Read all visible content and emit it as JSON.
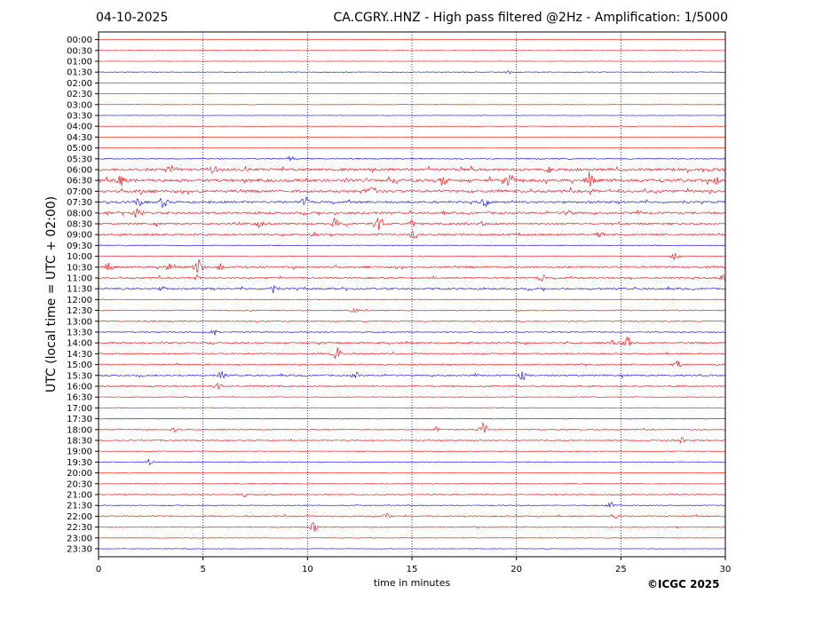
{
  "header": {
    "date": "04-10-2025",
    "title": "CA.CGRY..HNZ - High pass filtered @2Hz - Amplification: 1/5000"
  },
  "credit": "©ICGC 2025",
  "colors": {
    "red": "#ff0000",
    "blue": "#0000ff",
    "axis": "#000000",
    "grid": "#000080"
  },
  "chart_data": {
    "type": "line",
    "title": "CA.CGRY..HNZ - High pass filtered @2Hz - Amplification: 1/5000",
    "xlabel": "time in minutes",
    "ylabel": "UTC (local time = UTC + 02:00)",
    "xlim": [
      0,
      30
    ],
    "xticks": [
      0,
      5,
      10,
      15,
      20,
      25,
      30
    ],
    "x_gridlines": [
      5,
      10,
      15,
      20,
      25
    ],
    "row_colors": [
      "red",
      "red",
      "red",
      "blue"
    ],
    "rows": [
      "00:00",
      "00:30",
      "01:00",
      "01:30",
      "02:00",
      "02:30",
      "03:00",
      "03:30",
      "04:00",
      "04:30",
      "05:00",
      "05:30",
      "06:00",
      "06:30",
      "07:00",
      "07:30",
      "08:00",
      "08:30",
      "09:00",
      "09:30",
      "10:00",
      "10:30",
      "11:00",
      "11:30",
      "12:00",
      "12:30",
      "13:00",
      "13:30",
      "14:00",
      "14:30",
      "15:00",
      "15:30",
      "16:00",
      "16:30",
      "17:00",
      "17:30",
      "18:00",
      "18:30",
      "19:00",
      "19:30",
      "20:00",
      "20:30",
      "21:00",
      "21:30",
      "22:00",
      "22:30",
      "23:00",
      "23:30"
    ],
    "activity": [
      0,
      0,
      0,
      0.1,
      0,
      0,
      0,
      0,
      0,
      0,
      0,
      0.3,
      1,
      1,
      0.9,
      0.7,
      0.7,
      0.6,
      0.6,
      0.2,
      0.2,
      0.6,
      0.5,
      0.6,
      0.2,
      0.3,
      0.3,
      0.3,
      0.5,
      0.4,
      0.4,
      0.5,
      0.4,
      0.2,
      0.2,
      0.1,
      0.3,
      0.3,
      0.1,
      0.2,
      0.1,
      0.1,
      0.3,
      0.2,
      0.4,
      0.3,
      0.1,
      0.05
    ],
    "events": [
      {
        "row": "01:30",
        "t": 19.6,
        "amp": 0.2
      },
      {
        "row": "05:30",
        "t": 9.2,
        "amp": 0.35
      },
      {
        "row": "06:00",
        "t": 3.4,
        "amp": 0.5
      },
      {
        "row": "06:00",
        "t": 5.5,
        "amp": 0.4
      },
      {
        "row": "06:00",
        "t": 21.6,
        "amp": 0.4
      },
      {
        "row": "06:30",
        "t": 1.1,
        "amp": 0.6
      },
      {
        "row": "06:30",
        "t": 16.5,
        "amp": 0.6
      },
      {
        "row": "06:30",
        "t": 19.7,
        "amp": 0.7
      },
      {
        "row": "06:30",
        "t": 23.5,
        "amp": 0.7
      },
      {
        "row": "06:30",
        "t": 29.6,
        "amp": 0.45
      },
      {
        "row": "07:00",
        "t": 2.0,
        "amp": 0.5
      },
      {
        "row": "07:00",
        "t": 13.1,
        "amp": 0.6
      },
      {
        "row": "07:30",
        "t": 1.9,
        "amp": 0.5
      },
      {
        "row": "07:30",
        "t": 3.1,
        "amp": 0.6
      },
      {
        "row": "07:30",
        "t": 9.9,
        "amp": 0.6
      },
      {
        "row": "07:30",
        "t": 18.5,
        "amp": 0.5
      },
      {
        "row": "08:00",
        "t": 1.9,
        "amp": 0.6
      },
      {
        "row": "08:00",
        "t": 22.5,
        "amp": 0.5
      },
      {
        "row": "08:30",
        "t": 7.7,
        "amp": 0.4
      },
      {
        "row": "08:30",
        "t": 11.3,
        "amp": 0.5
      },
      {
        "row": "08:30",
        "t": 13.4,
        "amp": 1.0
      },
      {
        "row": "08:30",
        "t": 15.0,
        "amp": 0.4
      },
      {
        "row": "08:30",
        "t": 18.3,
        "amp": 0.4
      },
      {
        "row": "09:00",
        "t": 10.3,
        "amp": 0.4
      },
      {
        "row": "09:00",
        "t": 15.1,
        "amp": 0.5
      },
      {
        "row": "09:00",
        "t": 24.0,
        "amp": 0.4
      },
      {
        "row": "10:00",
        "t": 27.6,
        "amp": 0.5
      },
      {
        "row": "10:30",
        "t": 0.5,
        "amp": 0.5
      },
      {
        "row": "10:30",
        "t": 3.3,
        "amp": 0.5
      },
      {
        "row": "10:30",
        "t": 4.8,
        "amp": 0.9
      },
      {
        "row": "10:30",
        "t": 5.8,
        "amp": 0.5
      },
      {
        "row": "11:00",
        "t": 4.7,
        "amp": 0.4
      },
      {
        "row": "11:00",
        "t": 21.2,
        "amp": 0.4
      },
      {
        "row": "11:00",
        "t": 29.9,
        "amp": 0.4
      },
      {
        "row": "11:30",
        "t": 8.3,
        "amp": 0.6
      },
      {
        "row": "11:30",
        "t": 3.1,
        "amp": 0.3
      },
      {
        "row": "12:30",
        "t": 12.2,
        "amp": 0.3
      },
      {
        "row": "13:30",
        "t": 5.5,
        "amp": 0.4
      },
      {
        "row": "14:00",
        "t": 24.7,
        "amp": 0.5
      },
      {
        "row": "14:00",
        "t": 25.3,
        "amp": 0.7
      },
      {
        "row": "14:30",
        "t": 11.4,
        "amp": 0.8
      },
      {
        "row": "15:00",
        "t": 27.7,
        "amp": 0.4
      },
      {
        "row": "15:30",
        "t": 5.9,
        "amp": 0.5
      },
      {
        "row": "15:30",
        "t": 12.3,
        "amp": 0.4
      },
      {
        "row": "15:30",
        "t": 20.3,
        "amp": 0.6
      },
      {
        "row": "16:00",
        "t": 5.7,
        "amp": 0.5
      },
      {
        "row": "18:00",
        "t": 3.7,
        "amp": 0.4
      },
      {
        "row": "18:00",
        "t": 16.1,
        "amp": 0.4
      },
      {
        "row": "18:00",
        "t": 18.4,
        "amp": 0.8
      },
      {
        "row": "18:30",
        "t": 27.9,
        "amp": 0.35
      },
      {
        "row": "19:30",
        "t": 2.4,
        "amp": 0.35
      },
      {
        "row": "21:00",
        "t": 6.9,
        "amp": 0.35
      },
      {
        "row": "21:30",
        "t": 24.5,
        "amp": 0.4
      },
      {
        "row": "22:00",
        "t": 13.8,
        "amp": 0.35
      },
      {
        "row": "22:00",
        "t": 24.7,
        "amp": 0.4
      },
      {
        "row": "22:30",
        "t": 10.3,
        "amp": 0.6
      }
    ]
  }
}
